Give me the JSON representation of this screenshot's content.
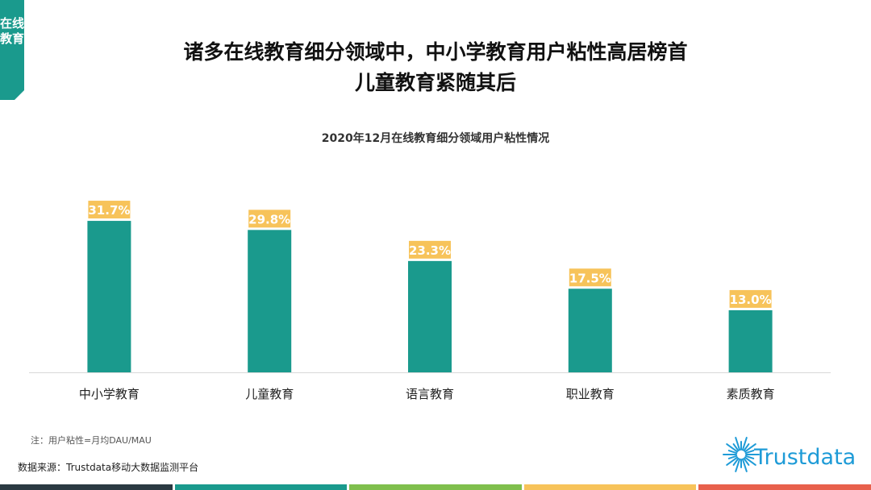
{
  "tag": {
    "text": "在线教育",
    "color": "#1a9a8d"
  },
  "title": {
    "line1": "诸多在线教育细分领域中，中小学教育用户粘性高居榜首",
    "line2": "儿童教育紧随其后"
  },
  "chart_data": {
    "type": "bar",
    "title": "2020年12月在线教育细分领域用户粘性情况",
    "categories": [
      "中小学教育",
      "儿童教育",
      "语言教育",
      "职业教育",
      "素质教育"
    ],
    "values": [
      31.7,
      29.8,
      23.3,
      17.5,
      13.0
    ],
    "value_labels": [
      "31.7%",
      "29.8%",
      "23.3%",
      "17.5%",
      "13.0%"
    ],
    "unit": "%",
    "ylim": [
      0,
      35
    ],
    "grid": false,
    "legend": "none",
    "colors": {
      "bar": "#1a9a8d",
      "label_bg": "#f7c35a",
      "baseline": "#d9d9d9"
    }
  },
  "note": "注：用户粘性=月均DAU/MAU",
  "source": "数据来源：Trustdata移动大数据监测平台",
  "logo": {
    "text": "Trustdata",
    "color": "#1e9bd7"
  },
  "bottom_bar_colors": [
    "#2b3a42",
    "#1a9a8d",
    "#7fbf4d",
    "#f7c35a",
    "#e8604c"
  ]
}
